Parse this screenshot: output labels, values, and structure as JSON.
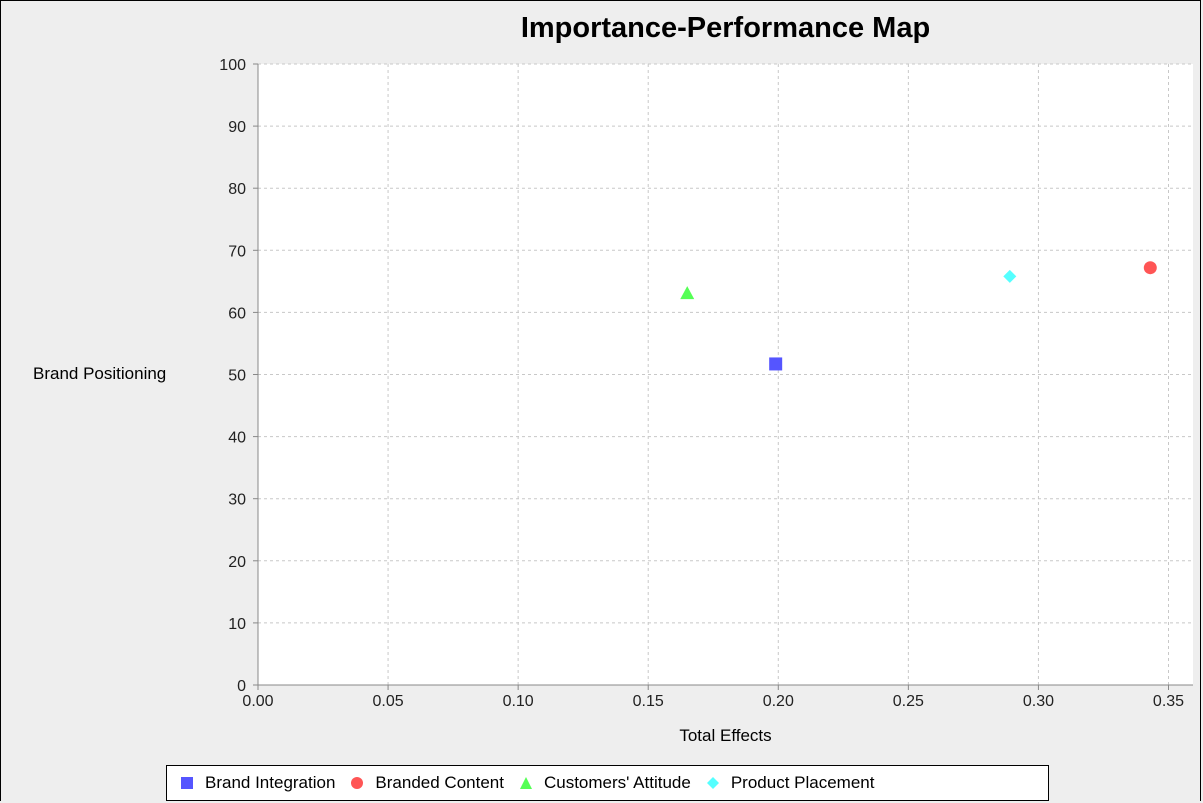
{
  "chart_data": {
    "type": "scatter",
    "title": "Importance-Performance Map",
    "xlabel": "Total Effects",
    "ylabel": "Brand Positioning",
    "xlim": [
      0,
      0.36
    ],
    "ylim": [
      0,
      100
    ],
    "x_ticks": [
      "0.00",
      "0.05",
      "0.10",
      "0.15",
      "0.20",
      "0.25",
      "0.30",
      "0.35"
    ],
    "y_ticks": [
      "0",
      "10",
      "20",
      "30",
      "40",
      "50",
      "60",
      "70",
      "80",
      "90",
      "100"
    ],
    "grid": true,
    "legend_position": "bottom",
    "series": [
      {
        "name": "Brand Integration",
        "marker": "square",
        "color": "#5555ff",
        "x": [
          0.199
        ],
        "y": [
          51.7
        ]
      },
      {
        "name": "Branded Content",
        "marker": "circle",
        "color": "#ff5555",
        "x": [
          0.343
        ],
        "y": [
          67.2
        ]
      },
      {
        "name": "Customers' Attitude",
        "marker": "triangle",
        "color": "#55ff55",
        "x": [
          0.165
        ],
        "y": [
          63.1
        ]
      },
      {
        "name": "Product Placement",
        "marker": "diamond",
        "color": "#55ffff",
        "x": [
          0.289
        ],
        "y": [
          65.8
        ]
      }
    ]
  }
}
